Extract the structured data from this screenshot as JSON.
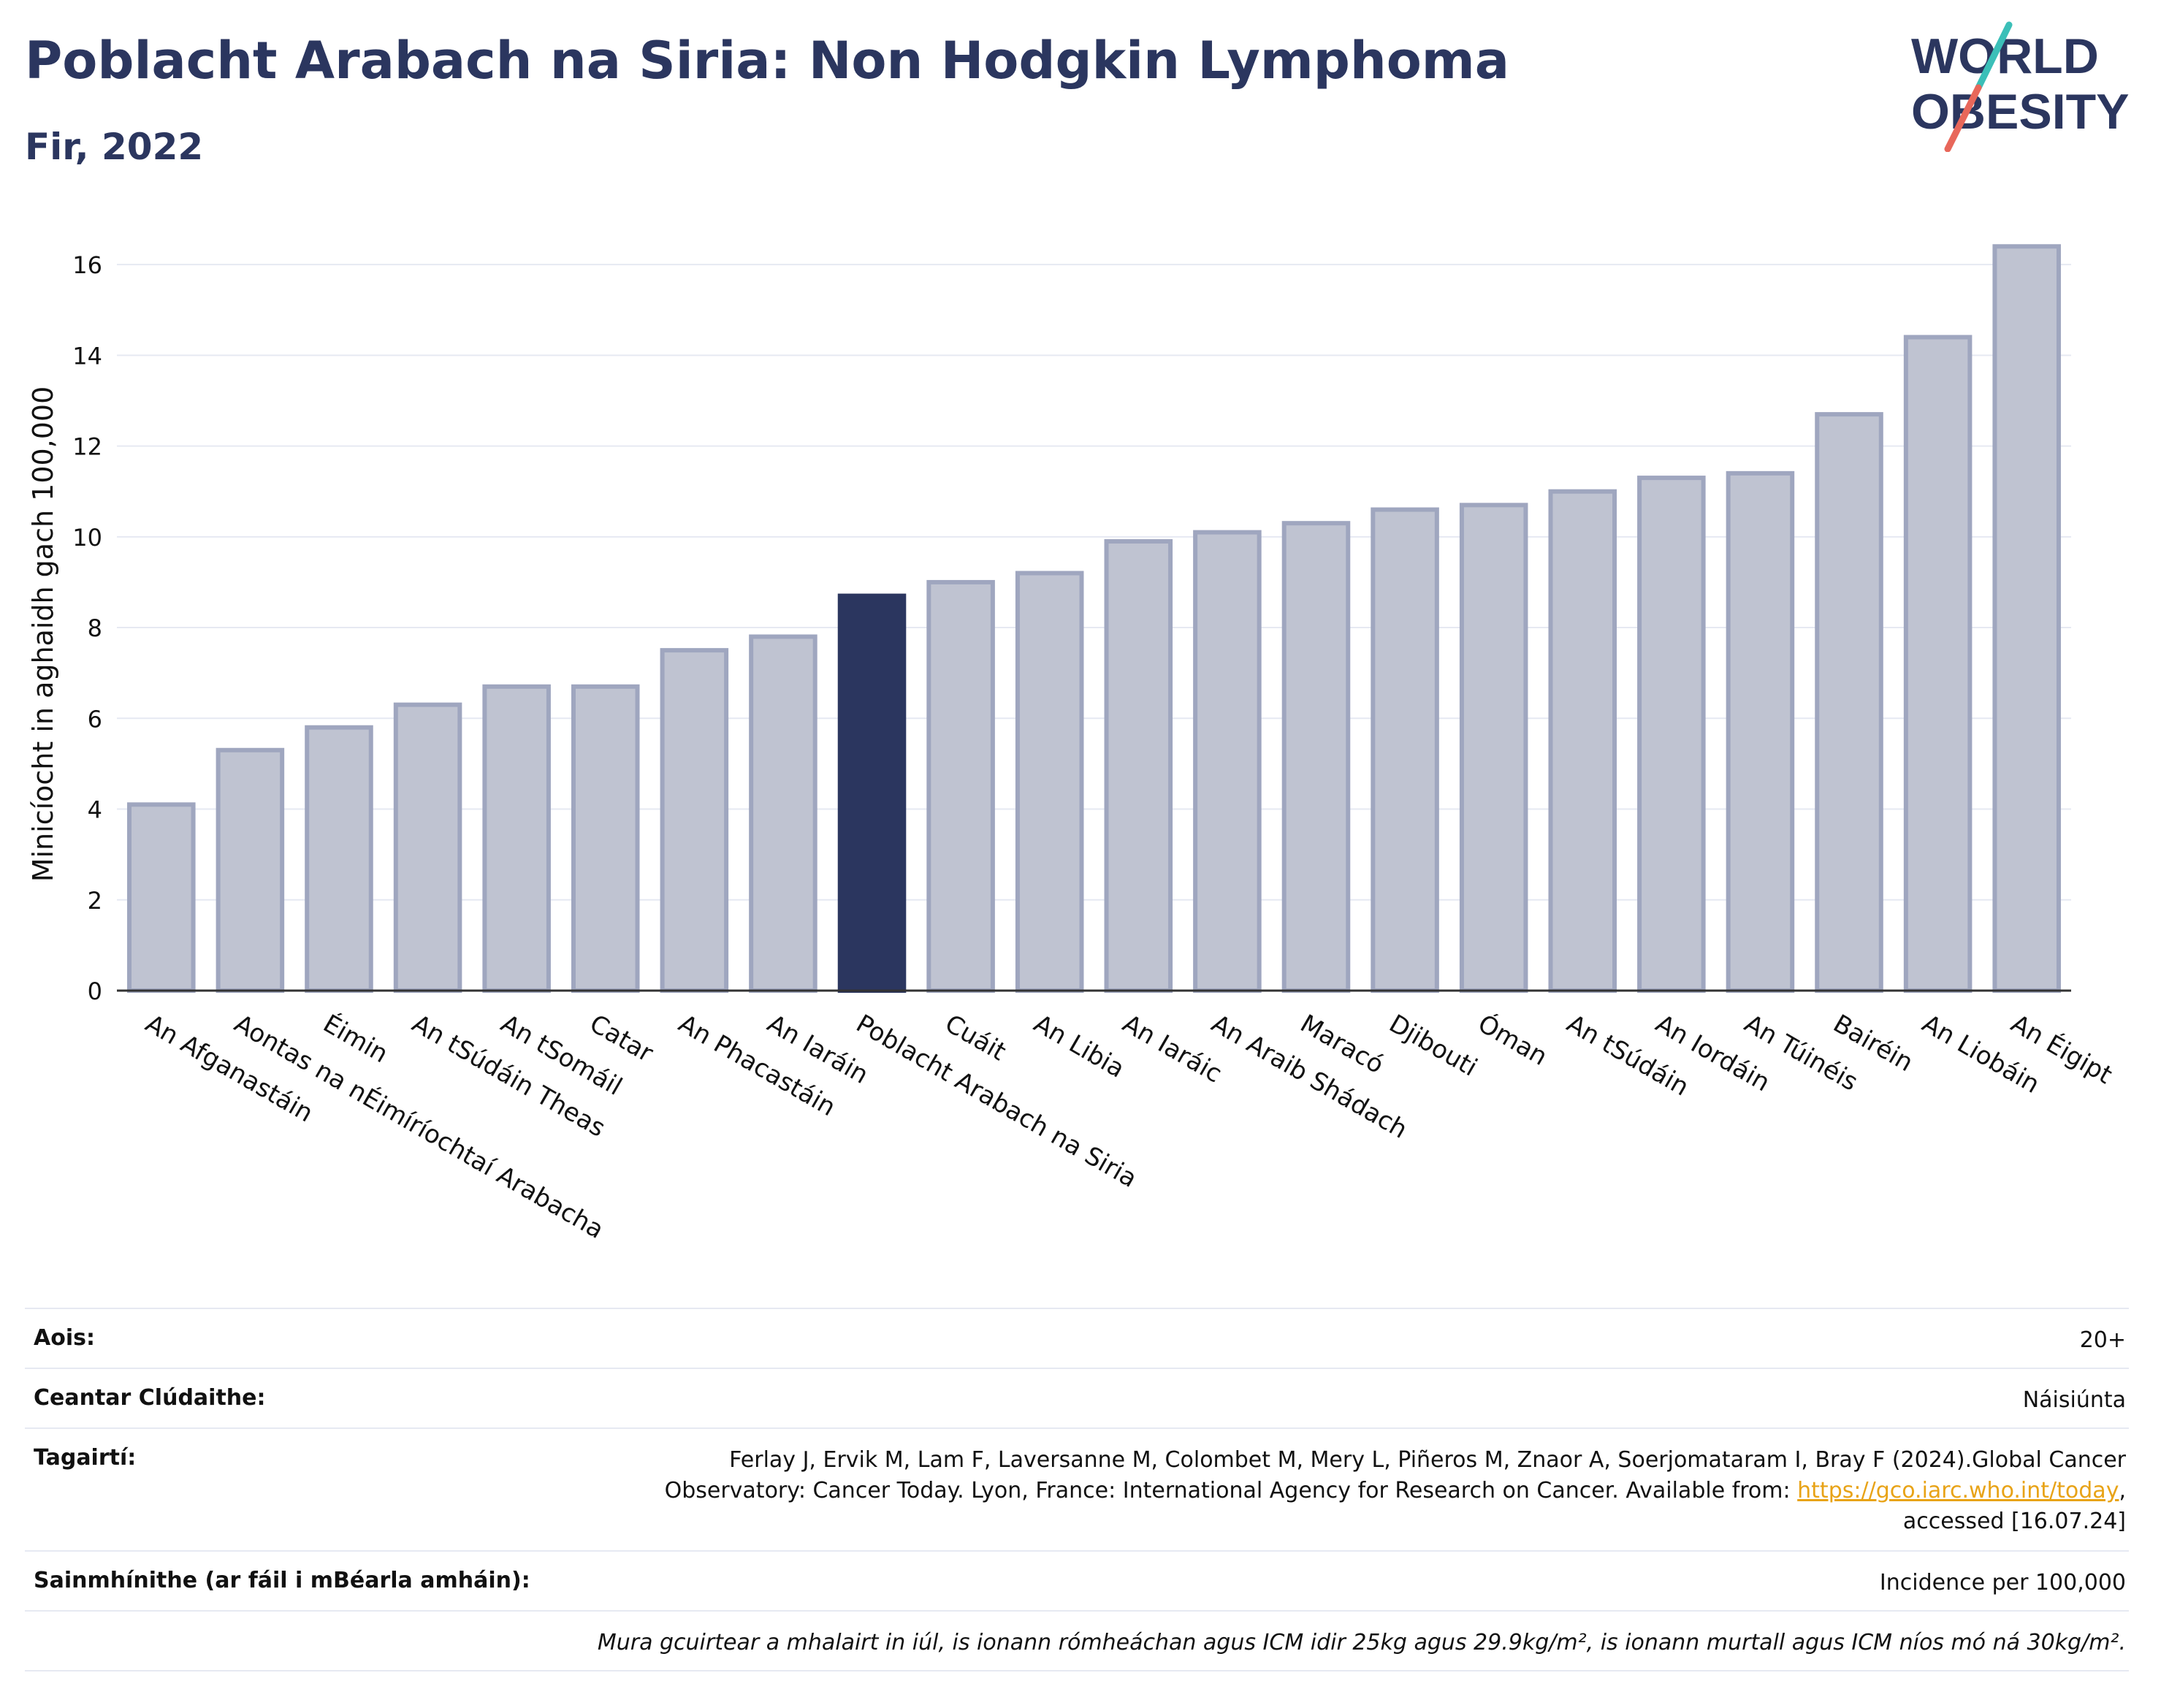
{
  "header": {
    "title": "Poblacht Arabach na Siria: Non Hodgkin Lymphoma",
    "subtitle": "Fir, 2022",
    "logo_line1": "WORLD",
    "logo_line2": "OBESITY"
  },
  "colors": {
    "title": "#2b365f",
    "bar": "#bfc3d1",
    "bar_border": "#9fa6bf",
    "highlight": "#2b365f",
    "link": "#e8a317",
    "logo_teal": "#3bbfb8",
    "logo_red": "#e8675a"
  },
  "chart_data": {
    "type": "bar",
    "ylabel": "Minicíocht in aghaidh gach 100,000",
    "ylim": [
      0,
      17
    ],
    "yticks": [
      0,
      2,
      4,
      6,
      8,
      10,
      12,
      14,
      16
    ],
    "grid": true,
    "highlight": "Poblacht Arabach na Siria",
    "categories": [
      "An Afganastáin",
      "Aontas na nÉimíríochtaí Arabacha",
      "Éimin",
      "An tSúdáin Theas",
      "An tSomáil",
      "Catar",
      "An Phacastáin",
      "An Iaráin",
      "Poblacht Arabach na Siria",
      "Cuáit",
      "An Libia",
      "An Iaráic",
      "An Araib Shádach",
      "Maracó",
      "Djibouti",
      "Óman",
      "An tSúdáin",
      "An Iordáin",
      "An Túinéis",
      "Bairéin",
      "An Liobáin",
      "An Éigipt"
    ],
    "values": [
      4.1,
      5.3,
      5.8,
      6.3,
      6.7,
      6.7,
      7.5,
      7.8,
      8.7,
      9.0,
      9.2,
      9.9,
      10.1,
      10.3,
      10.6,
      10.7,
      11.0,
      11.3,
      11.4,
      12.7,
      14.4,
      16.4
    ]
  },
  "meta": {
    "age_label": "Aois:",
    "age_value": "20+",
    "area_label": "Ceantar Clúdaithe:",
    "area_value": "Náisiúnta",
    "refs_label": "Tagairtí:",
    "refs_line1": "Ferlay J, Ervik M, Lam F, Laversanne M, Colombet M, Mery L, Piñeros M, Znaor A, Soerjomataram I, Bray F (2024).Global Cancer",
    "refs_line2": "Observatory: Cancer Today. Lyon, France: International Agency for Research on Cancer. Available from:",
    "refs_link": "https://gco.iarc.who.int/today",
    "refs_line3": "accessed [16.07.24]",
    "def_label": "Sainmhínithe (ar fáil i mBéarla amháin):",
    "def_value": "Incidence per 100,000",
    "note": "Mura gcuirtear a mhalairt in iúl, is ionann rómheáchan agus ICM idir 25kg agus 29.9kg/m², is ionann murtall agus ICM níos mó ná 30kg/m²."
  }
}
